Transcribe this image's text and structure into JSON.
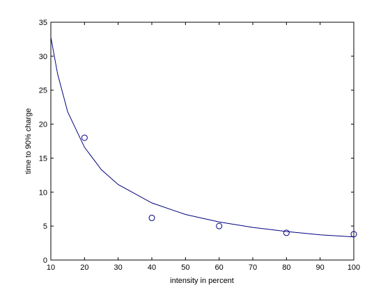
{
  "chart_data": {
    "type": "scatter",
    "xlabel": "intensity in percent",
    "ylabel": "time to 90% charge",
    "xlim": [
      10,
      100
    ],
    "ylim": [
      0,
      35
    ],
    "x_ticks": [
      10,
      20,
      30,
      40,
      50,
      60,
      70,
      80,
      90,
      100
    ],
    "y_ticks": [
      0,
      5,
      10,
      15,
      20,
      25,
      30,
      35
    ],
    "grid": false,
    "legend": "none",
    "series": [
      {
        "type": "scatter",
        "marker": "open-circle",
        "x": [
          20,
          40,
          60,
          80,
          100
        ],
        "y": [
          18.0,
          6.2,
          5.0,
          4.0,
          3.8
        ]
      },
      {
        "type": "line",
        "x": [
          10,
          12,
          15,
          20,
          25,
          30,
          40,
          50,
          60,
          70,
          80,
          90,
          100
        ],
        "y": [
          32.8,
          27.4,
          21.8,
          16.6,
          13.3,
          11.1,
          8.4,
          6.7,
          5.6,
          4.8,
          4.2,
          3.7,
          3.4
        ]
      }
    ],
    "colors": {
      "axes": "#000000",
      "line": "#00007f",
      "marker": "#00007f",
      "background": "#ffffff"
    }
  }
}
